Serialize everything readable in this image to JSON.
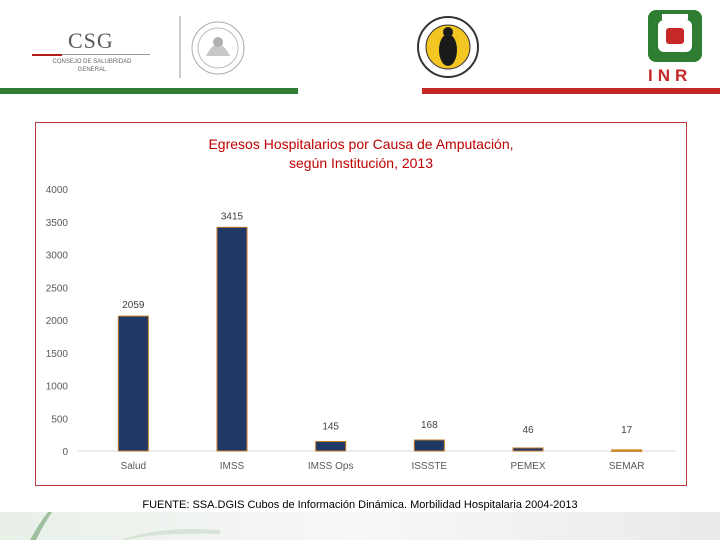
{
  "header": {
    "left_logo": {
      "text": "CSG",
      "subtext": "CONSEJO DE SALUBRIDAD GENERAL"
    },
    "right_logo": {
      "text": "INR"
    },
    "colors": {
      "green": "#2e7d32",
      "red": "#c62828"
    }
  },
  "chart_data": {
    "type": "bar",
    "title": "Egresos Hospitalarios por Causa de Amputación, según Institución, 2013",
    "title_lines": [
      "Egresos Hospitalarios por Causa de Amputación,",
      "según Institución, 2013"
    ],
    "categories": [
      "Salud",
      "IMSS",
      "IMSS Ops",
      "ISSSTE",
      "PEMEX",
      "SEMAR"
    ],
    "values": [
      2059,
      3415,
      145,
      168,
      46,
      17
    ],
    "value_labels": [
      "2059",
      "3415",
      "145",
      "168",
      "46",
      "17"
    ],
    "bar_colors": [
      "#1f3864",
      "#1f3864",
      "#1f3864",
      "#1f3864",
      "#1f3864",
      "#f4a300"
    ],
    "ylim": [
      0,
      4000
    ],
    "yticks": [
      "0",
      "500",
      "1000",
      "1500",
      "2000",
      "2500",
      "3000",
      "3500",
      "4000"
    ],
    "ytick_values": [
      0,
      500,
      1000,
      1500,
      2000,
      2500,
      3000,
      3500,
      4000
    ],
    "xlabel": "",
    "ylabel": "",
    "grid": false,
    "legend": "none"
  },
  "footer": {
    "source": "FUENTE: SSA.DGIS Cubos de Información Dinámica. Morbilidad Hospitalaria 2004-2013"
  }
}
